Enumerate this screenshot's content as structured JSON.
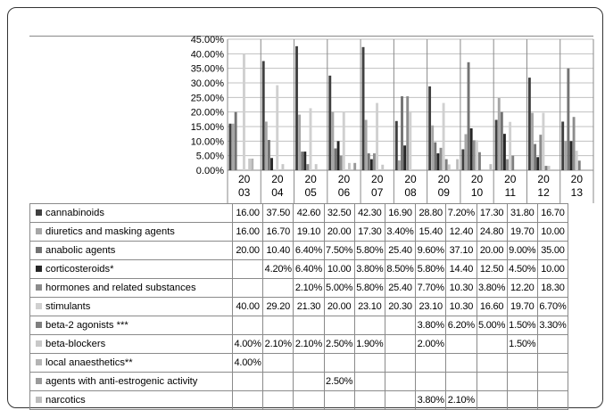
{
  "chart_data": {
    "type": "bar",
    "categories": [
      "2003",
      "2004",
      "2005",
      "2006",
      "2007",
      "2008",
      "2009",
      "2010",
      "2011",
      "2012",
      "2013"
    ],
    "category_labels": [
      [
        "20",
        "03"
      ],
      [
        "20",
        "04"
      ],
      [
        "20",
        "05"
      ],
      [
        "20",
        "06"
      ],
      [
        "20",
        "07"
      ],
      [
        "20",
        "08"
      ],
      [
        "20",
        "09"
      ],
      [
        "20",
        "10"
      ],
      [
        "20",
        "11"
      ],
      [
        "20",
        "12"
      ],
      [
        "20",
        "13"
      ]
    ],
    "y_ticks": [
      "45.00%",
      "40.00%",
      "35.00%",
      "30.00%",
      "25.00%",
      "20.00%",
      "15.00%",
      "10.00%",
      "5.00%",
      "0.00%"
    ],
    "ylim": [
      0,
      45
    ],
    "grid": true,
    "legend_placement": "data table below chart",
    "series": [
      {
        "name": "cannabinoids",
        "color": "#404040",
        "values": [
          16.0,
          37.5,
          42.6,
          32.5,
          42.3,
          16.9,
          28.8,
          7.2,
          17.3,
          31.8,
          16.7
        ],
        "labels": [
          "16.00",
          "37.50",
          "42.60",
          "32.50",
          "42.30",
          "16.90",
          "28.80",
          "7.20%",
          "17.30",
          "31.80",
          "16.70"
        ]
      },
      {
        "name": "diuretics and masking agents",
        "color": "#a6a6a6",
        "values": [
          16.0,
          16.7,
          19.1,
          20.0,
          17.3,
          3.4,
          15.4,
          12.4,
          24.8,
          19.7,
          10.0
        ],
        "labels": [
          "16.00",
          "16.70",
          "19.10",
          "20.00",
          "17.30",
          "3.40%",
          "15.40",
          "12.40",
          "24.80",
          "19.70",
          "10.00"
        ]
      },
      {
        "name": "anabolic agents",
        "color": "#737373",
        "values": [
          20.0,
          10.4,
          6.4,
          7.5,
          5.8,
          25.4,
          9.6,
          37.1,
          20.0,
          9.0,
          35.0
        ],
        "labels": [
          "20.00",
          "10.40",
          "6.40%",
          "7.50%",
          "5.80%",
          "25.40",
          "9.60%",
          "37.10",
          "20.00",
          "9.00%",
          "35.00"
        ]
      },
      {
        "name": "corticosteroids*",
        "color": "#262626",
        "values": [
          null,
          4.2,
          6.4,
          10.0,
          3.8,
          8.5,
          5.8,
          14.4,
          12.5,
          4.5,
          10.0
        ],
        "labels": [
          "",
          "4.20%",
          "6.40%",
          "10.00",
          "3.80%",
          "8.50%",
          "5.80%",
          "14.40",
          "12.50",
          "4.50%",
          "10.00"
        ]
      },
      {
        "name": "hormones and related substances",
        "color": "#8c8c8c",
        "values": [
          null,
          null,
          2.1,
          5.0,
          5.8,
          25.4,
          7.7,
          10.3,
          3.8,
          12.2,
          18.3
        ],
        "labels": [
          "",
          "",
          "2.10%",
          "5.00%",
          "5.80%",
          "25.40",
          "7.70%",
          "10.30",
          "3.80%",
          "12.20",
          "18.30"
        ]
      },
      {
        "name": "stimulants",
        "color": "#d0d0d0",
        "values": [
          40.0,
          29.2,
          21.3,
          20.0,
          23.1,
          20.3,
          23.1,
          10.3,
          16.6,
          19.7,
          6.7
        ],
        "labels": [
          "40.00",
          "29.20",
          "21.30",
          "20.00",
          "23.10",
          "20.30",
          "23.10",
          "10.30",
          "16.60",
          "19.70",
          "6.70%"
        ]
      },
      {
        "name": "beta-2 agonists ***",
        "color": "#7f7f7f",
        "values": [
          null,
          null,
          null,
          null,
          null,
          null,
          3.8,
          6.2,
          5.0,
          1.5,
          3.3
        ],
        "labels": [
          "",
          "",
          "",
          "",
          "",
          "",
          "3.80%",
          "6.20%",
          "5.00%",
          "1.50%",
          "3.30%"
        ]
      },
      {
        "name": "beta-blockers",
        "color": "#c8c8c8",
        "values": [
          4.0,
          2.1,
          2.1,
          2.5,
          1.9,
          null,
          2.0,
          null,
          null,
          1.5,
          null
        ],
        "labels": [
          "4.00%",
          "2.10%",
          "2.10%",
          "2.50%",
          "1.90%",
          "",
          "2.00%",
          "",
          "",
          "1.50%",
          ""
        ]
      },
      {
        "name": "local anaesthetics**",
        "color": "#b4b4b4",
        "values": [
          4.0,
          null,
          null,
          null,
          null,
          null,
          null,
          null,
          null,
          null,
          null
        ],
        "labels": [
          "4.00%",
          "",
          "",
          "",
          "",
          "",
          "",
          "",
          "",
          "",
          ""
        ]
      },
      {
        "name": "agents with anti-estrogenic activity",
        "color": "#9a9a9a",
        "values": [
          null,
          null,
          null,
          2.5,
          null,
          null,
          null,
          null,
          null,
          null,
          null
        ],
        "labels": [
          "",
          "",
          "",
          "2.50%",
          "",
          "",
          "",
          "",
          "",
          "",
          ""
        ]
      },
      {
        "name": "narcotics",
        "color": "#bdbdbd",
        "values": [
          null,
          null,
          null,
          null,
          null,
          null,
          3.8,
          2.1,
          null,
          null,
          null
        ],
        "labels": [
          "",
          "",
          "",
          "",
          "",
          "",
          "3.80%",
          "2.10%",
          "",
          "",
          ""
        ]
      }
    ]
  }
}
